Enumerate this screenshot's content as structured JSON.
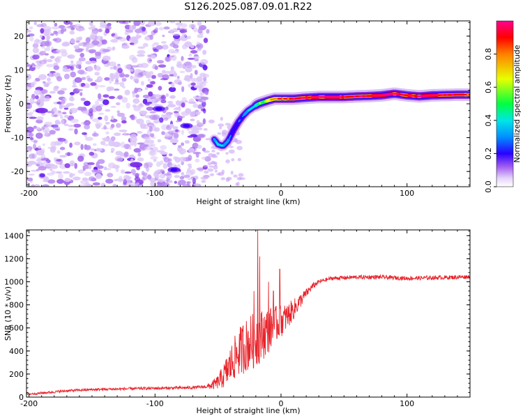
{
  "title": "S126.2025.087.09.01.R22",
  "colors": {
    "snr_line": "#e8232a",
    "colormap": [
      "#ffffff",
      "#c99cf5",
      "#8a2be2",
      "#3a00ff",
      "#00a0ff",
      "#00e8e0",
      "#00ff40",
      "#e8ff00",
      "#ff8000",
      "#ff0000",
      "#ff0090"
    ]
  },
  "chart_data": [
    {
      "type": "heatmap",
      "name": "spectrogram",
      "xlabel": "Height of straight line (km)",
      "ylabel": "Frequency (Hz)",
      "xlim": [
        -202,
        150
      ],
      "ylim": [
        -24.5,
        24.5
      ],
      "xticks": [
        -200,
        -100,
        0,
        100
      ],
      "yticks": [
        -20,
        -10,
        0,
        10,
        20
      ],
      "xtick_labels": [
        "-200",
        "-100",
        "0",
        "100"
      ],
      "ytick_labels": [
        "-20",
        "-10",
        "0",
        "10",
        "20"
      ],
      "colorbar": {
        "label": "Normalized spectral amplitude",
        "range": [
          0.0,
          1.0
        ],
        "ticks": [
          0.0,
          0.2,
          0.4,
          0.6,
          0.8
        ],
        "tick_labels": [
          "0.0",
          "0.2",
          "0.4",
          "0.6",
          "0.8"
        ]
      },
      "noise_region_x": [
        -202,
        -58
      ],
      "ridge": {
        "x": [
          -53,
          -50,
          -46,
          -42,
          -38,
          -34,
          -30,
          -26,
          -22,
          -18,
          -14,
          -10,
          -5,
          0,
          10,
          20,
          30,
          40,
          50,
          60,
          70,
          80,
          90,
          100,
          110,
          120,
          130,
          140,
          150
        ],
        "y": [
          -10.5,
          -12,
          -12.5,
          -11,
          -8,
          -5.5,
          -3.5,
          -2,
          -1,
          0,
          0.5,
          1,
          1.5,
          1.5,
          1.5,
          1.8,
          2,
          2,
          2,
          2.2,
          2.3,
          2.5,
          3,
          2.5,
          2.2,
          2.5,
          2.6,
          2.7,
          2.7
        ],
        "amplitude": [
          0.35,
          0.45,
          0.4,
          0.35,
          0.3,
          0.3,
          0.35,
          0.4,
          0.45,
          0.55,
          0.6,
          0.65,
          0.7,
          0.75,
          0.8,
          0.85,
          0.85,
          0.9,
          0.85,
          0.8,
          0.8,
          0.9,
          0.85,
          0.8,
          0.85,
          0.9,
          0.8,
          0.8,
          0.75
        ]
      },
      "blobs": [
        {
          "x": -97,
          "y": -1.5,
          "amplitude": 0.3
        },
        {
          "x": -75,
          "y": -6.5,
          "amplitude": 0.3
        },
        {
          "x": -85,
          "y": -19.5,
          "amplitude": 0.3
        },
        {
          "x": -115,
          "y": -18,
          "amplitude": 0.2
        },
        {
          "x": -190,
          "y": -2,
          "amplitude": 0.2
        }
      ]
    },
    {
      "type": "line",
      "name": "snr",
      "xlabel": "Height of straight line (km)",
      "ylabel": "SNR (10 * v/v)",
      "xlim": [
        -202,
        150
      ],
      "ylim": [
        0,
        1450
      ],
      "xticks": [
        -200,
        -100,
        0,
        100
      ],
      "yticks": [
        0,
        200,
        400,
        600,
        800,
        1000,
        1200,
        1400
      ],
      "xtick_labels": [
        "-200",
        "-100",
        "0",
        "100"
      ],
      "ytick_labels": [
        "0",
        "200",
        "400",
        "600",
        "800",
        "1000",
        "1200",
        "1400"
      ],
      "envelope": {
        "x": [
          -202,
          -190,
          -170,
          -150,
          -130,
          -110,
          -90,
          -70,
          -60,
          -55,
          -50,
          -45,
          -40,
          -35,
          -30,
          -25,
          -20,
          -15,
          -10,
          -5,
          0,
          5,
          10,
          15,
          20,
          25,
          30,
          40,
          50,
          60,
          80,
          100,
          120,
          140,
          150
        ],
        "y": [
          25,
          35,
          55,
          65,
          70,
          75,
          78,
          82,
          90,
          100,
          130,
          190,
          280,
          370,
          430,
          470,
          500,
          540,
          580,
          620,
          660,
          700,
          760,
          830,
          900,
          960,
          1000,
          1030,
          1035,
          1040,
          1040,
          1030,
          1035,
          1040,
          1045
        ]
      },
      "noise_amplitude": {
        "x": [
          -202,
          -60,
          -50,
          -40,
          -30,
          -20,
          -10,
          0,
          10,
          20,
          30,
          150
        ],
        "y": [
          10,
          14,
          60,
          170,
          230,
          250,
          200,
          140,
          90,
          40,
          18,
          18
        ]
      },
      "spikes": [
        {
          "x": -18.5,
          "y": 1450
        },
        {
          "x": -17.0,
          "y": 1220
        },
        {
          "x": -10.0,
          "y": 1000
        },
        {
          "x": -1.0,
          "y": 1110
        },
        {
          "x": -30.0,
          "y": 620
        },
        {
          "x": -21.5,
          "y": 920
        },
        {
          "x": -6.0,
          "y": 920
        }
      ]
    }
  ]
}
